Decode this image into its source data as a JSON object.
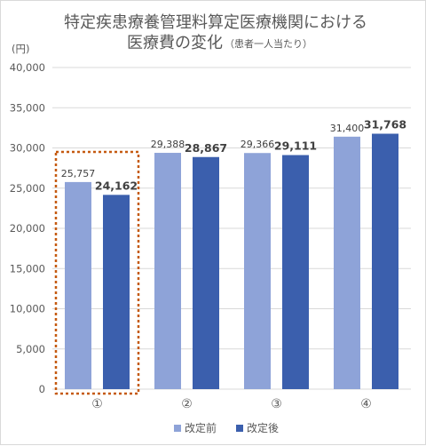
{
  "chart_data": {
    "type": "bar",
    "title": "特定疾患療養管理料算定医療機関における",
    "title_line2": "医療費の変化",
    "subtitle": "（患者一人当たり）",
    "yunit": "(円)",
    "categories": [
      "①",
      "②",
      "③",
      "④"
    ],
    "series": [
      {
        "name": "改定前",
        "color": "#8ea3d8",
        "values": [
          25757,
          29388,
          29366,
          31400
        ],
        "labels": [
          "25,757",
          "29,388",
          "29,366",
          "31,400"
        ]
      },
      {
        "name": "改定後",
        "color": "#3b5fad",
        "values": [
          24162,
          28867,
          29111,
          31768
        ],
        "labels": [
          "24,162",
          "28,867",
          "29,111",
          "31,768"
        ]
      }
    ],
    "ylim": [
      0,
      40000
    ],
    "yticks": [
      0,
      5000,
      10000,
      15000,
      20000,
      25000,
      30000,
      35000,
      40000
    ],
    "ytick_labels": [
      "0",
      "5,000",
      "10,000",
      "15,000",
      "20,000",
      "25,000",
      "30,000",
      "35,000",
      "40,000"
    ],
    "grid": true,
    "legend": "bottom",
    "highlight_category": "①",
    "highlight_color": "#c55a11"
  }
}
